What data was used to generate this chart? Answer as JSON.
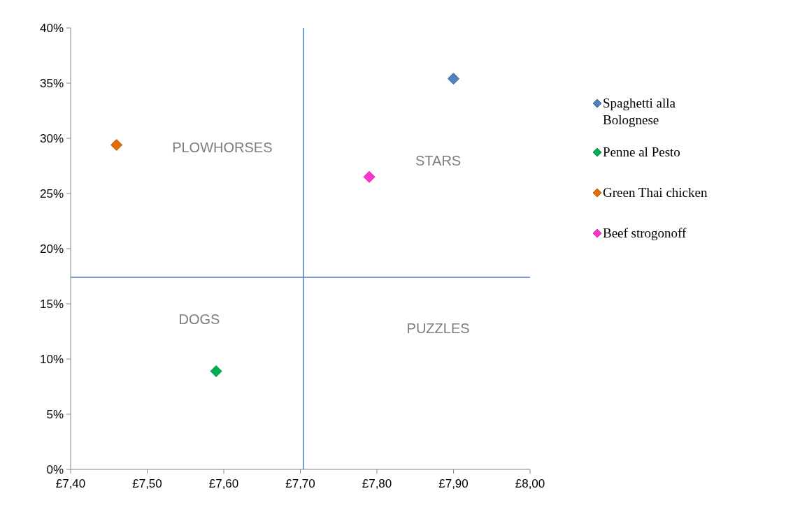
{
  "chart_data": {
    "type": "scatter",
    "marker": "diamond",
    "legend": "right",
    "grid": false,
    "xlim": [
      7.4,
      8.0
    ],
    "xticks": [
      {
        "value": 7.4,
        "label": "£7,40"
      },
      {
        "value": 7.5,
        "label": "£7,50"
      },
      {
        "value": 7.6,
        "label": "£7,60"
      },
      {
        "value": 7.7,
        "label": "£7,70"
      },
      {
        "value": 7.8,
        "label": "£7,80"
      },
      {
        "value": 7.9,
        "label": "£7,90"
      },
      {
        "value": 8.0,
        "label": "£8,00"
      }
    ],
    "ylim": [
      0,
      40
    ],
    "yticks": [
      {
        "value": 0,
        "label": "0%"
      },
      {
        "value": 5,
        "label": "5%"
      },
      {
        "value": 10,
        "label": "10%"
      },
      {
        "value": 15,
        "label": "15%"
      },
      {
        "value": 20,
        "label": "20%"
      },
      {
        "value": 25,
        "label": "25%"
      },
      {
        "value": 30,
        "label": "30%"
      },
      {
        "value": 35,
        "label": "35%"
      },
      {
        "value": 40,
        "label": "40%"
      }
    ],
    "series": [
      {
        "name": "Spaghetti alla Bolognese",
        "color": "#4f81bd",
        "x": [
          7.9
        ],
        "values": [
          35.4
        ]
      },
      {
        "name": "Penne al Pesto",
        "color": "#00b050",
        "x": [
          7.59
        ],
        "values": [
          8.9
        ]
      },
      {
        "name": "Green Thai chicken",
        "color": "#e36c09",
        "x": [
          7.46
        ],
        "values": [
          29.4
        ]
      },
      {
        "name": "Beef strogonoff",
        "color": "#ff33cc",
        "x": [
          7.79
        ],
        "values": [
          26.5
        ]
      }
    ],
    "ref_lines": [
      {
        "axis": "x",
        "value": 7.704,
        "color": "#4a7ebb"
      },
      {
        "axis": "y",
        "value": 17.4,
        "color": "#4a7ebb"
      }
    ],
    "annotations": [
      "PLOWHORSES",
      "STARS",
      "DOGS",
      "PUZZLES"
    ]
  }
}
